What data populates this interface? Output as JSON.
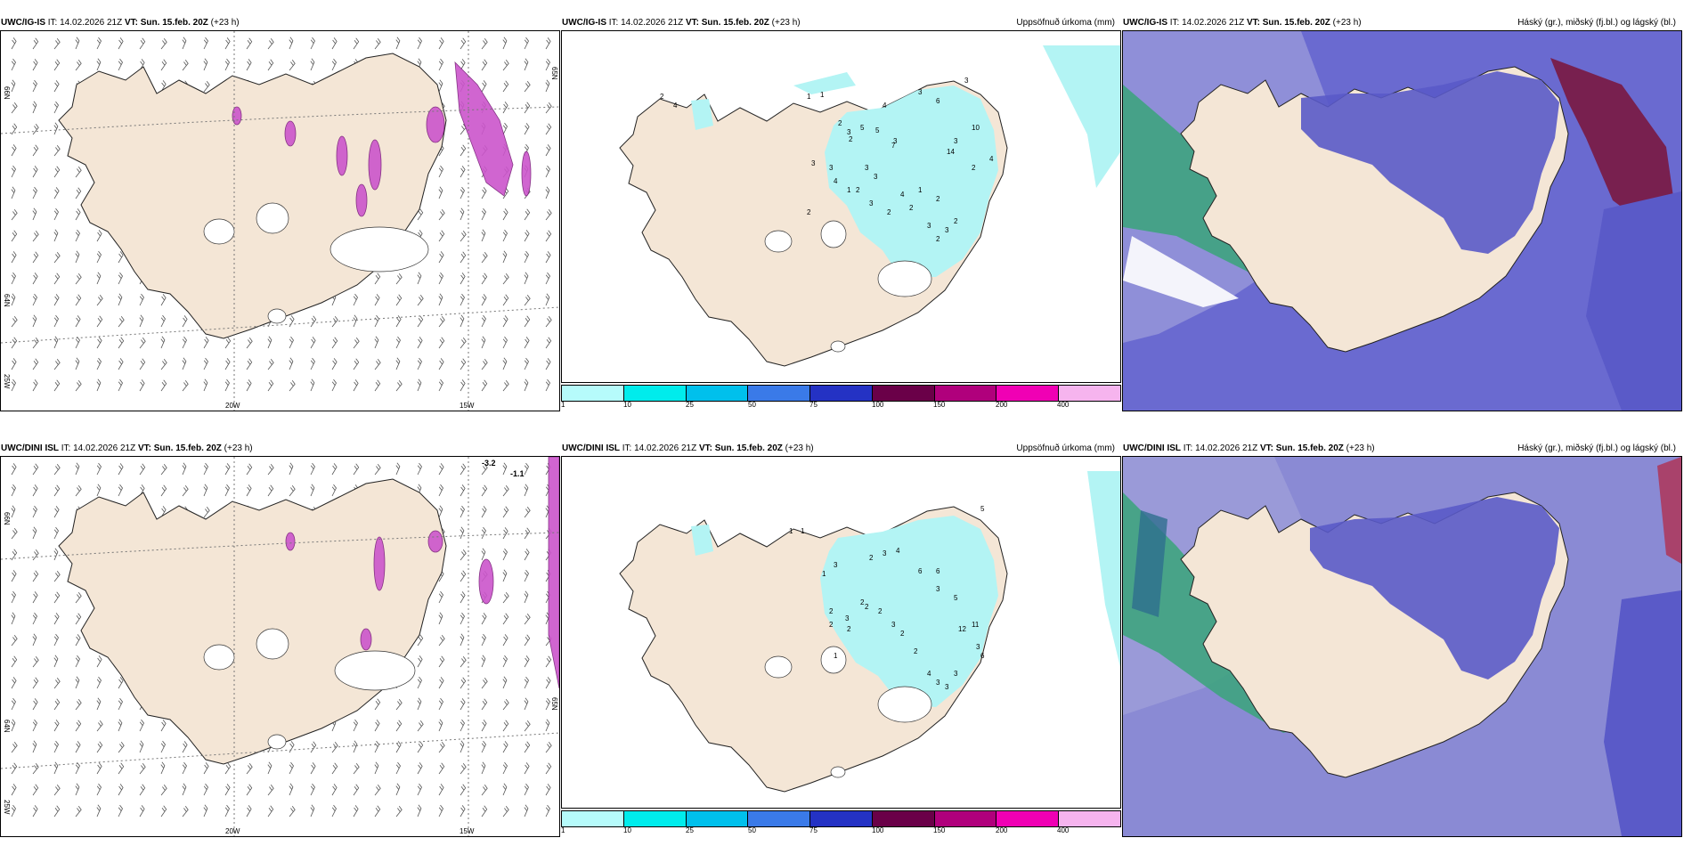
{
  "rows": [
    {
      "model": "UWC/IG-IS",
      "init_label": "IT:",
      "init_time": "14.02.2026 21Z",
      "valid_label": "VT:",
      "valid_time": "Sun. 15.feb. 20Z",
      "lead": "(+23 h)",
      "precip_title": "Uppsöfnuð úrkoma (mm)",
      "cloud_title": "Háský (gr.), miðský (fj.bl.) og lágský (bl.)",
      "axis_labels": {
        "lon_20": "20W",
        "lon_15": "15W",
        "lat_66": "66N",
        "lat_64": "64N",
        "lon_25": "25W",
        "lat_65": "65N"
      },
      "precip_numbers": [
        "1",
        "1",
        "2",
        "4",
        "4",
        "7",
        "3",
        "2",
        "3",
        "2",
        "5",
        "5",
        "6",
        "3",
        "14",
        "10",
        "4",
        "1",
        "2",
        "3",
        "2",
        "3",
        "3",
        "3",
        "2",
        "4",
        "2",
        "2",
        "3",
        "3",
        "4",
        "1",
        "3",
        "2",
        "3",
        "2",
        "3",
        "2"
      ]
    },
    {
      "model": "UWC/DINI ISL",
      "init_label": "IT:",
      "init_time": "14.02.2026 21Z",
      "valid_label": "VT:",
      "valid_time": "Sun. 15.feb. 20Z",
      "lead": "(+23 h)",
      "precip_title": "Uppsöfnuð úrkoma (mm)",
      "cloud_title": "Háský (gr.), miðský (fj.bl.) og lágský (bl.)",
      "axis_labels": {
        "lon_20": "20W",
        "lon_15": "15W",
        "lat_66": "66N",
        "lat_64": "64N",
        "lon_25": "25W",
        "lat_65": "65N"
      },
      "temp_labels": [
        "-3.2",
        "-1.1"
      ],
      "precip_numbers": [
        "1",
        "1",
        "5",
        "3",
        "2",
        "4",
        "6",
        "6",
        "5",
        "3",
        "12",
        "11",
        "3",
        "6",
        "3",
        "2",
        "2",
        "3",
        "2",
        "2",
        "1",
        "2",
        "3",
        "2",
        "4",
        "3",
        "3",
        "2",
        "2",
        "1",
        "3"
      ]
    }
  ],
  "colorbar": {
    "ticks": [
      "1",
      "10",
      "25",
      "50",
      "75",
      "100",
      "150",
      "200",
      "400"
    ],
    "colors": [
      "#b6fbfb",
      "#00ecec",
      "#00c0ec",
      "#3a7ae8",
      "#2432c4",
      "#6a0048",
      "#b0007c",
      "#f000b4",
      "#f6b4ee"
    ]
  },
  "colors": {
    "land": "#f4e6d6",
    "precip": "#b3f4f4",
    "cloud_high": "#6f6fd0",
    "cloud_mid": "#7a1840",
    "cloud_low": "#2e9e6e",
    "wind_barb": "#555555",
    "vort": "#cc44cc"
  }
}
